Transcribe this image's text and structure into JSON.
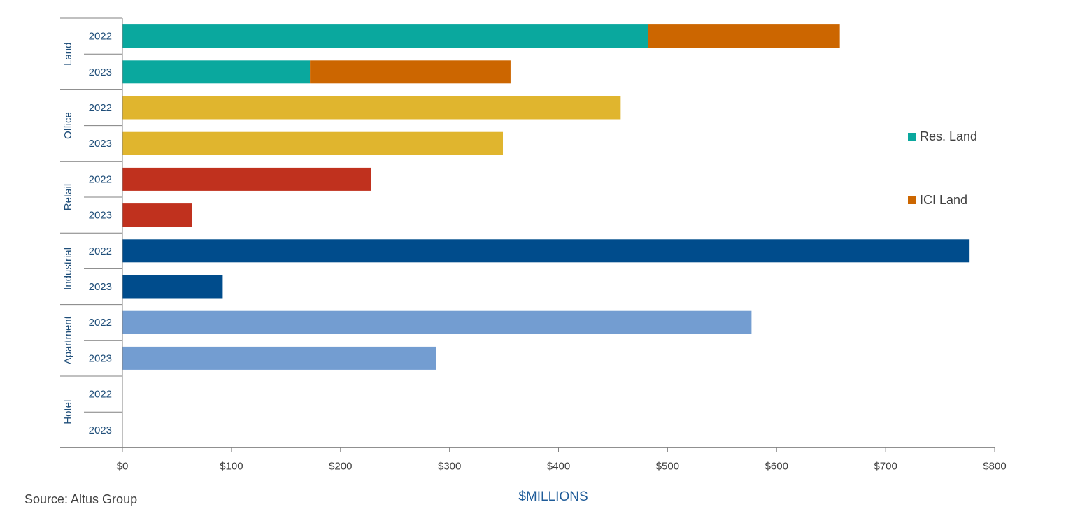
{
  "chart_data": {
    "type": "bar",
    "orientation": "horizontal",
    "stacked": true,
    "xlabel": "$MILLIONS",
    "xlim": [
      0,
      800
    ],
    "x_ticks": [
      0,
      100,
      200,
      300,
      400,
      500,
      600,
      700,
      800
    ],
    "x_tick_labels": [
      "$0",
      "$100",
      "$200",
      "$300",
      "$400",
      "$500",
      "$600",
      "$700",
      "$800"
    ],
    "groups": [
      {
        "name": "Land",
        "rows": [
          {
            "year": "2022",
            "segments": [
              {
                "series": "Res. Land",
                "value": 482,
                "color": "#0aa89e"
              },
              {
                "series": "ICI Land",
                "value": 176,
                "color": "#cc6600"
              }
            ]
          },
          {
            "year": "2023",
            "segments": [
              {
                "series": "Res. Land",
                "value": 172,
                "color": "#0aa89e"
              },
              {
                "series": "ICI Land",
                "value": 184,
                "color": "#cc6600"
              }
            ]
          }
        ]
      },
      {
        "name": "Office",
        "rows": [
          {
            "year": "2022",
            "segments": [
              {
                "series": "Office",
                "value": 457,
                "color": "#e0b52e"
              }
            ]
          },
          {
            "year": "2023",
            "segments": [
              {
                "series": "Office",
                "value": 349,
                "color": "#e0b52e"
              }
            ]
          }
        ]
      },
      {
        "name": "Retail",
        "rows": [
          {
            "year": "2022",
            "segments": [
              {
                "series": "Retail",
                "value": 228,
                "color": "#c0311e"
              }
            ]
          },
          {
            "year": "2023",
            "segments": [
              {
                "series": "Retail",
                "value": 64,
                "color": "#c0311e"
              }
            ]
          }
        ]
      },
      {
        "name": "Industrial",
        "rows": [
          {
            "year": "2022",
            "segments": [
              {
                "series": "Industrial",
                "value": 777,
                "color": "#004c8c"
              }
            ]
          },
          {
            "year": "2023",
            "segments": [
              {
                "series": "Industrial",
                "value": 92,
                "color": "#004c8c"
              }
            ]
          }
        ]
      },
      {
        "name": "Apartment",
        "rows": [
          {
            "year": "2022",
            "segments": [
              {
                "series": "Apartment",
                "value": 577,
                "color": "#739dd1"
              }
            ]
          },
          {
            "year": "2023",
            "segments": [
              {
                "series": "Apartment",
                "value": 288,
                "color": "#739dd1"
              }
            ]
          }
        ]
      },
      {
        "name": "Hotel",
        "rows": [
          {
            "year": "2022",
            "segments": []
          },
          {
            "year": "2023",
            "segments": []
          }
        ]
      }
    ],
    "legend": [
      {
        "label": "Res. Land",
        "color": "#0aa89e"
      },
      {
        "label": "ICI Land",
        "color": "#cc6600"
      }
    ],
    "legend_position": "right"
  },
  "source": "Source:  Altus Group",
  "colors": {
    "axis": "#808080",
    "label": "#1f4e79",
    "tick_text": "#404040"
  }
}
